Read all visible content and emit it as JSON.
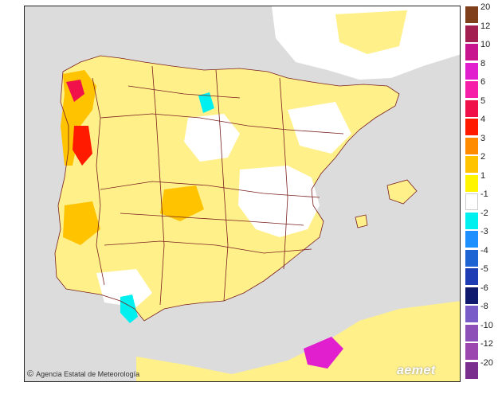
{
  "map": {
    "credit_text": "Agencia Estatal de Meteorología",
    "logo_text": "aemet",
    "colors": {
      "sea": "#dcdcdc",
      "land_no_change": "#ffffff",
      "borders": "#7a1f1f"
    }
  },
  "legend": {
    "labels": [
      "20",
      "12",
      "10",
      "8",
      "6",
      "5",
      "4",
      "3",
      "2",
      "1",
      "-1",
      "-2",
      "-3",
      "-4",
      "-5",
      "-6",
      "-8",
      "-10",
      "-12",
      "-20"
    ],
    "colors": [
      "#7f3f1a",
      "#a31f52",
      "#c8148e",
      "#e11fcf",
      "#f51fa8",
      "#f0104a",
      "#ff1a00",
      "#ff8c00",
      "#ffc300",
      "#fff500",
      "#ffffff",
      "#00f0f0",
      "#1e90ff",
      "#1e64d2",
      "#1e3cb4",
      "#0f1a6e",
      "#7a5cc8",
      "#8c50b8",
      "#9c46b0",
      "#7a2f8f"
    ]
  }
}
